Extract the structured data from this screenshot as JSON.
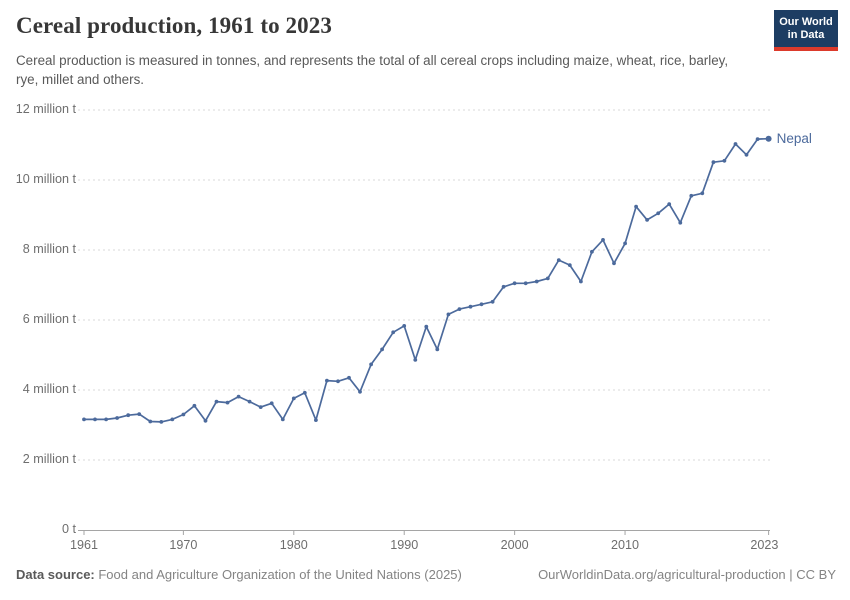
{
  "header": {
    "title": "Cereal production, 1961 to 2023",
    "subtitle": "Cereal production is measured in tonnes, and represents the total of all cereal crops including maize, wheat, rice, barley, rye, millet and others."
  },
  "logo": {
    "line1": "Our World",
    "line2": "in Data",
    "bg_color": "#1d3d63",
    "accent_color": "#dc3a2b"
  },
  "chart_data": {
    "type": "line",
    "title": "Cereal production, 1961 to 2023",
    "unit": "tonnes",
    "xlabel": "",
    "ylabel": "",
    "xlim": [
      1961,
      2023
    ],
    "ylim": [
      0,
      12000000
    ],
    "grid": "horizontal-dashed",
    "legend": "end-of-line-label",
    "yticks": [
      {
        "value": 0,
        "label": "0 t"
      },
      {
        "value": 2000000,
        "label": "2 million t"
      },
      {
        "value": 4000000,
        "label": "4 million t"
      },
      {
        "value": 6000000,
        "label": "6 million t"
      },
      {
        "value": 8000000,
        "label": "8 million t"
      },
      {
        "value": 10000000,
        "label": "10 million t"
      },
      {
        "value": 12000000,
        "label": "12 million t"
      }
    ],
    "xticks": [
      1961,
      1970,
      1980,
      1990,
      2000,
      2010,
      2023
    ],
    "x": [
      1961,
      1962,
      1963,
      1964,
      1965,
      1966,
      1967,
      1968,
      1969,
      1970,
      1971,
      1972,
      1973,
      1974,
      1975,
      1976,
      1977,
      1978,
      1979,
      1980,
      1981,
      1982,
      1983,
      1984,
      1985,
      1986,
      1987,
      1988,
      1989,
      1990,
      1991,
      1992,
      1993,
      1994,
      1995,
      1996,
      1997,
      1998,
      1999,
      2000,
      2001,
      2002,
      2003,
      2004,
      2005,
      2006,
      2007,
      2008,
      2009,
      2010,
      2011,
      2012,
      2013,
      2014,
      2015,
      2016,
      2017,
      2018,
      2019,
      2020,
      2021,
      2022,
      2023
    ],
    "series": [
      {
        "name": "Nepal",
        "color": "#4C6A9C",
        "values_million_t": [
          3.16,
          3.16,
          3.16,
          3.2,
          3.28,
          3.31,
          3.1,
          3.09,
          3.16,
          3.3,
          3.55,
          3.12,
          3.67,
          3.64,
          3.81,
          3.67,
          3.51,
          3.62,
          3.16,
          3.76,
          3.92,
          3.14,
          4.27,
          4.25,
          4.35,
          3.95,
          4.73,
          5.16,
          5.65,
          5.83,
          4.86,
          5.81,
          5.16,
          6.16,
          6.31,
          6.38,
          6.45,
          6.52,
          6.95,
          7.05,
          7.05,
          7.1,
          7.19,
          7.71,
          7.57,
          7.1,
          7.95,
          8.29,
          7.62,
          8.19,
          9.24,
          8.86,
          9.05,
          9.31,
          8.78,
          9.55,
          9.62,
          10.51,
          10.55,
          11.03,
          10.72,
          11.17,
          11.18
        ]
      }
    ]
  },
  "colors": {
    "gridline": "#d9d9d9",
    "axis": "#a5a5a5",
    "tick_label": "#6e6e6e"
  },
  "footer": {
    "source_label": "Data source:",
    "source_value": " Food and Agriculture Organization of the United Nations (2025)",
    "right_text": "OurWorldinData.org/agricultural-production | CC BY"
  }
}
